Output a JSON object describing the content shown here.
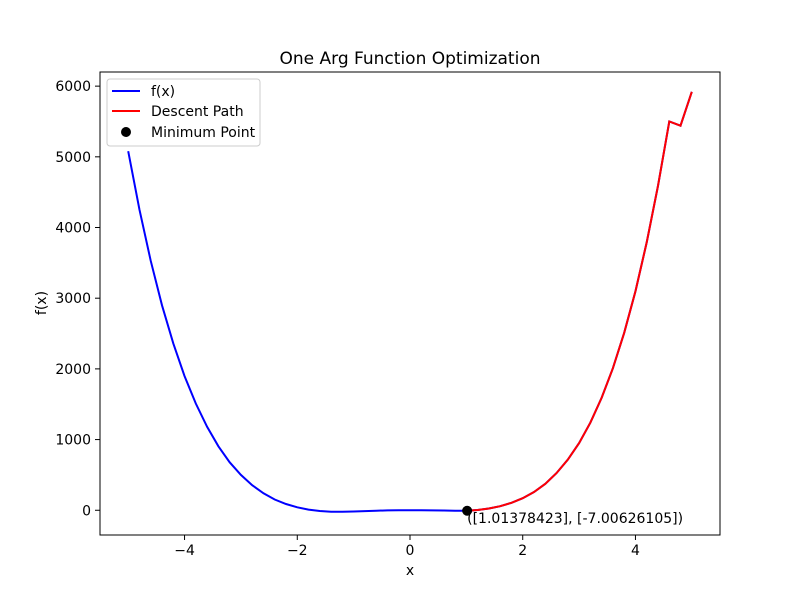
{
  "chart_data": {
    "type": "line",
    "title": "One Arg Function Optimization",
    "xlabel": "x",
    "ylabel": "f(x)",
    "xlim": [
      -5.5,
      5.5
    ],
    "ylim": [
      -350,
      6200
    ],
    "xticks": [
      -4,
      -2,
      0,
      2,
      4
    ],
    "xtick_labels": [
      "−4",
      "−2",
      "0",
      "2",
      "4"
    ],
    "yticks": [
      0,
      1000,
      2000,
      3000,
      4000,
      5000,
      6000
    ],
    "ytick_labels": [
      "0",
      "1000",
      "2000",
      "3000",
      "4000",
      "5000",
      "6000"
    ],
    "grid": false,
    "legend_position": "top-left",
    "series": [
      {
        "name": "f(x)",
        "color": "#0000ff",
        "x": [
          -5.0,
          -4.8,
          -4.6,
          -4.4,
          -4.2,
          -4.0,
          -3.8,
          -3.6,
          -3.4,
          -3.2,
          -3.0,
          -2.8,
          -2.6,
          -2.4,
          -2.2,
          -2.0,
          -1.8,
          -1.6,
          -1.4,
          -1.2,
          -1.0,
          -0.8,
          -0.6,
          -0.4,
          -0.2,
          0.0,
          0.2,
          0.4,
          0.6,
          0.8,
          1.0,
          1.2,
          1.4,
          1.6,
          1.8,
          2.0,
          2.2,
          2.4,
          2.6,
          2.8,
          3.0,
          3.2,
          3.4,
          3.6,
          3.8,
          4.0,
          4.2,
          4.4,
          4.6,
          4.8,
          5.0
        ],
        "y": [
          5080,
          4250,
          3530,
          2900,
          2360,
          1900,
          1510,
          1180,
          905,
          680,
          500,
          355,
          240,
          152,
          88,
          42,
          10,
          -10,
          -20,
          -22,
          -18,
          -12,
          -6,
          -2,
          0,
          0,
          -1,
          -2,
          -4,
          -6,
          -7,
          4,
          25,
          58,
          105,
          170,
          258,
          375,
          525,
          715,
          950,
          1240,
          1590,
          2010,
          2510,
          3100,
          3790,
          4590,
          5500,
          5440,
          5920
        ]
      },
      {
        "name": "Descent Path",
        "color": "#ff0000",
        "x": [
          1.0138,
          1.2,
          1.4,
          1.6,
          1.8,
          2.0,
          2.2,
          2.4,
          2.6,
          2.8,
          3.0,
          3.2,
          3.4,
          3.6,
          3.8,
          4.0,
          4.2,
          4.4,
          4.6,
          4.8,
          5.0
        ],
        "y": [
          -7.006,
          4,
          25,
          58,
          105,
          170,
          258,
          375,
          525,
          715,
          950,
          1240,
          1590,
          2010,
          2510,
          3100,
          3790,
          4590,
          5500,
          5440,
          5920
        ]
      }
    ],
    "minimum_point": {
      "name": "Minimum Point",
      "color": "#000000",
      "x": 1.01378423,
      "y": -7.00626105,
      "annotation": "([1.01378423], [-7.00626105])"
    }
  }
}
